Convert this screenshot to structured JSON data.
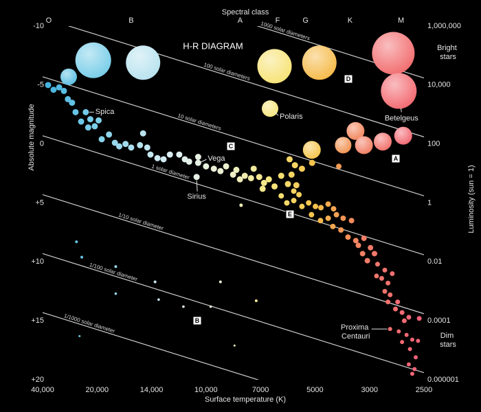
{
  "chart_data": {
    "type": "scatter",
    "title": "H-R DIAGRAM",
    "xlabel": "Surface temperature (K)",
    "x2label": "Spectral class",
    "ylabel": "Absolute magnitude",
    "y2label": "Luminosity (sun = 1)",
    "xlog": true,
    "y2log": true,
    "xlim": [
      40000,
      2500
    ],
    "xticks": [
      {
        "value": 40000,
        "label": "40,000"
      },
      {
        "value": 20000,
        "label": "20,000"
      },
      {
        "value": 14000,
        "label": "14,000"
      },
      {
        "value": 10000,
        "label": "10,000"
      },
      7000,
      5000,
      3000,
      2500
    ],
    "x2ticks": [
      {
        "value": 37000,
        "label": "O"
      },
      {
        "value": 16000,
        "label": "B"
      },
      {
        "value": 8000,
        "label": "A"
      },
      {
        "value": 6300,
        "label": "F"
      },
      {
        "value": 5300,
        "label": "G"
      },
      {
        "value": 3600,
        "label": "K"
      },
      {
        "value": 2700,
        "label": "M"
      }
    ],
    "ylim": [
      20,
      -10
    ],
    "yticks": [
      -10,
      -5,
      0,
      {
        "value": 5,
        "label": "+5"
      },
      {
        "value": 10,
        "label": "+10"
      },
      {
        "value": 15,
        "label": "+15"
      },
      {
        "value": 20,
        "label": "+20"
      }
    ],
    "y2lim": [
      1e-06,
      1000000
    ],
    "y2ticks": [
      {
        "value": 1000000,
        "label": "1,000,000"
      },
      {
        "value": 10000,
        "label": "10,000"
      },
      100,
      1,
      0.01,
      0.0001,
      {
        "value": 1e-06,
        "label": "0.000001"
      }
    ],
    "top_note": "Bright stars",
    "bottom_note": "Dim stars",
    "color_scale": [
      [
        40000,
        "#3fb0dd"
      ],
      [
        20000,
        "#7fd0ea"
      ],
      [
        12000,
        "#e2f1f3"
      ],
      [
        8500,
        "#ecefc8"
      ],
      [
        6500,
        "#f7e57a"
      ],
      [
        5000,
        "#f5c24a"
      ],
      [
        3800,
        "#f29255"
      ],
      [
        3000,
        "#f27a6a"
      ],
      [
        2500,
        "#f2607a"
      ]
    ],
    "line_color": "#cfcfcf",
    "diameter_lines": [
      {
        "label": "1000 solar diameters",
        "values": [
          -15.7,
          -5.6
        ]
      },
      {
        "label": "100 solar diameters",
        "values": [
          -10.7,
          -0.6
        ]
      },
      {
        "label": "10 solar diameters",
        "values": [
          -5.7,
          4.4
        ]
      },
      {
        "label": "1 solar diameter",
        "values": [
          -0.7,
          9.4
        ]
      },
      {
        "label": "1/10 solar diameter",
        "values": [
          4.3,
          14.4
        ]
      },
      {
        "label": "1/100 solar diameter",
        "values": [
          9.3,
          19.4
        ]
      },
      {
        "label": "1/1000 solar diameter",
        "values": [
          14.3,
          24.4
        ]
      }
    ],
    "annotations": [
      "A",
      "B",
      "C",
      "D",
      "E"
    ],
    "named_stars": [
      {
        "name": "Betelgeus",
        "x": 2720,
        "value": -4.5,
        "size": 26
      },
      {
        "name": "Polaris",
        "x": 6600,
        "value": -3.0,
        "size": 12
      },
      {
        "name": "Spica",
        "x": 23100,
        "value": -2.7,
        "size": 4.5
      },
      {
        "name": "Vega",
        "x": 10500,
        "value": 1.6,
        "size": 4.5
      },
      {
        "name": "Sirius",
        "x": 10600,
        "value": 2.8,
        "size": 4.5
      },
      {
        "name": "Proxima Centauri",
        "x": 2800,
        "value": 15.7,
        "size": 3
      }
    ],
    "x": [
      21000,
      14800,
      28700,
      6420,
      4800,
      2770,
      5100,
      3420,
      3840,
      3160,
      2870,
      2680,
      4000,
      37300,
      34800,
      32400,
      30500,
      29000,
      27500,
      26300,
      24500,
      21800,
      20600,
      19800,
      22400,
      19400,
      18500,
      17800,
      17300,
      16600,
      16000,
      14800,
      15100,
      14400,
      14100,
      13500,
      13000,
      12500,
      11800,
      11400,
      11100,
      10500,
      10000,
      9500,
      9100,
      8770,
      8380,
      8010,
      8200,
      7760,
      7450,
      7320,
      7060,
      6850,
      6910,
      6650,
      6420,
      6160,
      5910,
      5780,
      5610,
      5660,
      5420,
      5090,
      5850,
      6160,
      5950,
      5700,
      5420,
      5200,
      4980,
      4730,
      4420,
      4200,
      5700,
      5520,
      7950,
      5110,
      4750,
      4420,
      4090,
      3840,
      3550,
      4230,
      3920,
      3670,
      3410,
      3330,
      3160,
      2990,
      2950,
      3200,
      3060,
      2920,
      2850,
      2880,
      2820,
      2930,
      2780,
      2850,
      2800,
      2730,
      2690,
      2630,
      2820,
      2750,
      2540,
      2670,
      2720,
      2650,
      2600,
      2690,
      2620,
      2570,
      2630,
      2580,
      2600,
      2550,
      26000,
      24300,
      17700,
      17700,
      13700,
      13400,
      11500,
      9700,
      9100,
      7200,
      8300,
      25000
    ],
    "values": [
      -7.1,
      -6.9,
      -5.7,
      -6.6,
      -6.9,
      -7.7,
      0.5,
      -1.1,
      0.1,
      0.1,
      -0.2,
      -0.7,
      1.9,
      -5.0,
      -4.6,
      -4.8,
      -4.5,
      -3.8,
      -3.5,
      -2.7,
      -1.9,
      -2.1,
      -1.5,
      -2.0,
      -1.4,
      -0.4,
      -0.8,
      -0.1,
      0.2,
      0.0,
      0.3,
      -0.9,
      0.1,
      0.3,
      0.9,
      1.2,
      1.3,
      0.9,
      0.9,
      1.3,
      1.5,
      1.1,
      1.9,
      2.1,
      2.3,
      1.9,
      2.6,
      3.0,
      2.2,
      2.7,
      2.9,
      2.1,
      2.8,
      3.3,
      3.8,
      3.0,
      3.6,
      2.7,
      3.4,
      2.6,
      3.5,
      1.8,
      2.1,
      1.6,
      1.3,
      4.4,
      5.0,
      4.8,
      5.3,
      5.0,
      5.3,
      5.4,
      5.1,
      5.5,
      4.0,
      4.3,
      5.2,
      6.0,
      6.5,
      6.3,
      6.0,
      6.3,
      6.5,
      7.0,
      7.3,
      7.9,
      8.2,
      8.6,
      8.0,
      8.8,
      9.3,
      9.3,
      9.9,
      10.2,
      10.7,
      11.4,
      11.8,
      11.2,
      11.0,
      12.5,
      12.8,
      13.4,
      14.3,
      14.7,
      13.4,
      14.0,
      14.8,
      15.0,
      15.9,
      16.2,
      16.6,
      16.8,
      17.4,
      18.1,
      18.7,
      19.1,
      19.5,
      16.7,
      8.3,
      9.6,
      10.4,
      12.7,
      11.7,
      13.2,
      13.8,
      13.8,
      11.7,
      13.3,
      17.1,
      16.3
    ],
    "sizes": [
      26,
      25,
      12,
      25,
      25,
      31,
      13,
      13,
      12,
      13,
      13,
      13,
      4,
      4.5,
      4.5,
      4.5,
      4.5,
      4.5,
      4.5,
      4.5,
      4.5,
      4.5,
      4.5,
      4.5,
      4.5,
      4.5,
      4.5,
      4.5,
      4.5,
      4.5,
      4.5,
      4.5,
      4.5,
      4.5,
      4.5,
      4.5,
      4.5,
      4.5,
      4.5,
      4.5,
      4.5,
      4.5,
      4.5,
      4.5,
      4.5,
      4.5,
      4.5,
      4.5,
      4.5,
      4.5,
      4.5,
      4.5,
      4.5,
      4.5,
      4.5,
      4.5,
      4.5,
      4.5,
      4.5,
      4.5,
      4.5,
      4.5,
      4.5,
      4.5,
      4.5,
      4,
      4,
      4,
      4,
      4,
      4,
      4,
      4,
      4,
      4,
      4,
      2.5,
      4,
      4,
      4,
      4,
      4,
      4,
      4,
      4,
      4,
      4,
      4,
      4,
      4,
      4,
      4,
      4,
      3.5,
      3.5,
      3.5,
      3.5,
      3.5,
      3.5,
      3.5,
      3.5,
      3.5,
      3.5,
      3.5,
      3.5,
      3.5,
      3.5,
      3.5,
      3,
      3,
      3,
      3,
      3,
      3,
      3,
      3,
      3,
      3,
      2,
      2,
      2,
      1.8,
      2,
      1.8,
      1.8,
      1.8,
      2,
      2,
      1.5,
      1.5
    ]
  }
}
